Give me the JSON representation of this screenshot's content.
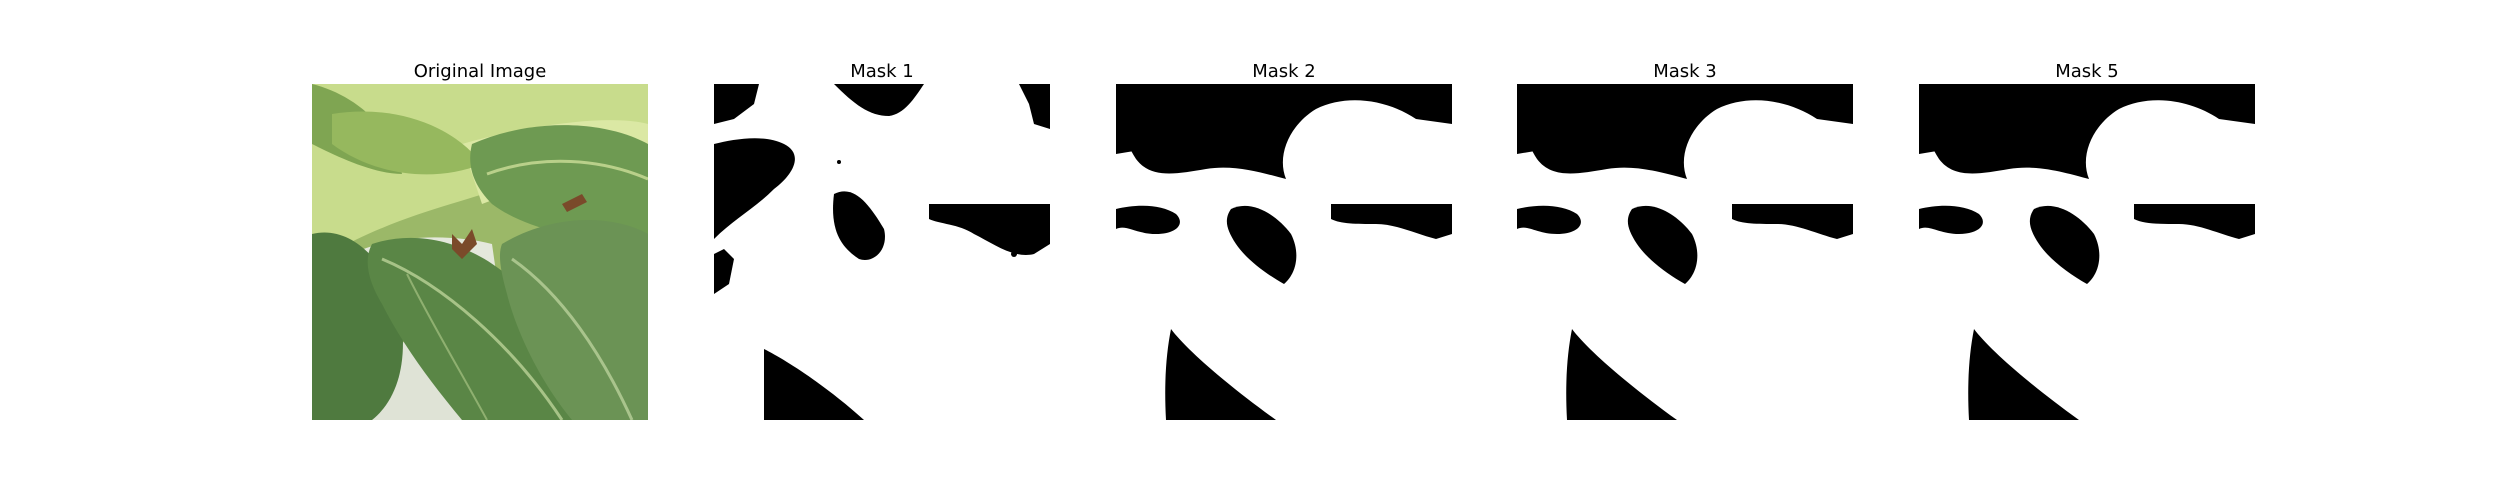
{
  "panels": [
    {
      "title": "Original Image",
      "kind": "photo",
      "subject": "plant-leaves"
    },
    {
      "title": "Mask 1",
      "kind": "mask",
      "variant": "fine"
    },
    {
      "title": "Mask 2",
      "kind": "mask",
      "variant": "smooth"
    },
    {
      "title": "Mask 3",
      "kind": "mask",
      "variant": "smooth"
    },
    {
      "title": "Mask 5",
      "kind": "mask",
      "variant": "smooth"
    }
  ],
  "colors": {
    "mask_foreground": "#ffffff",
    "mask_background": "#000000",
    "leaf_dark": "#4f7a3f",
    "leaf_mid": "#6e9a52",
    "leaf_light": "#c8dc8c"
  }
}
